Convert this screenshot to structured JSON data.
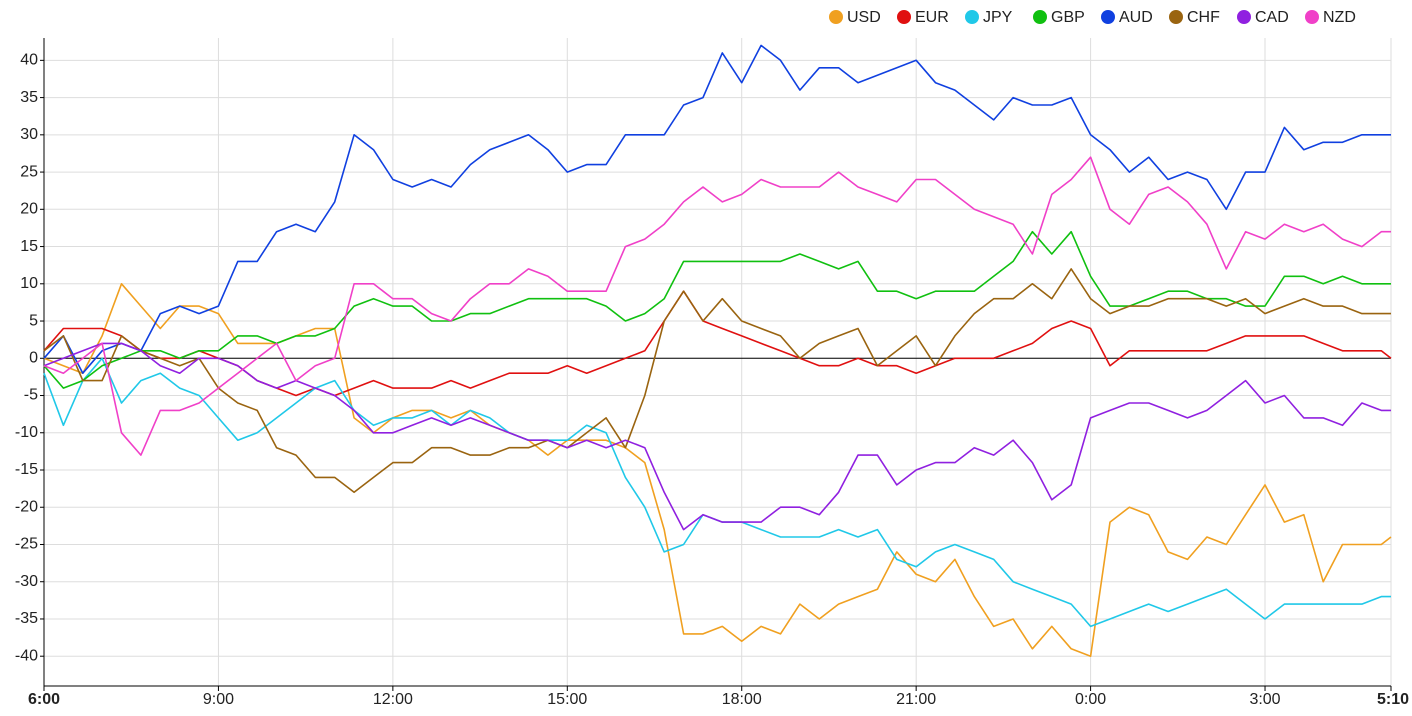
{
  "chart_data": {
    "type": "line",
    "x": [
      0,
      20,
      40,
      60,
      80,
      100,
      120,
      140,
      160,
      180,
      200,
      220,
      240,
      260,
      280,
      300,
      320,
      340,
      360,
      380,
      400,
      420,
      440,
      460,
      480,
      500,
      520,
      540,
      560,
      580,
      600,
      620,
      640,
      660,
      680,
      700,
      720,
      740,
      760,
      780,
      800,
      820,
      840,
      860,
      880,
      900,
      920,
      940,
      960,
      980,
      1000,
      1020,
      1040,
      1060,
      1080,
      1100,
      1120,
      1140,
      1160,
      1180,
      1200,
      1220,
      1240,
      1260,
      1280,
      1300,
      1320,
      1340,
      1360,
      1380,
      1390
    ],
    "xlim": [
      0,
      1390
    ],
    "xticks": [
      {
        "value": 0,
        "label": "6:00"
      },
      {
        "value": 180,
        "label": "9:00"
      },
      {
        "value": 360,
        "label": "12:00"
      },
      {
        "value": 540,
        "label": "15:00"
      },
      {
        "value": 720,
        "label": "18:00"
      },
      {
        "value": 900,
        "label": "21:00"
      },
      {
        "value": 1080,
        "label": "0:00"
      },
      {
        "value": 1260,
        "label": "3:00"
      },
      {
        "value": 1390,
        "label": "5:10"
      }
    ],
    "ylim": [
      -44,
      43
    ],
    "yticks": [
      -40,
      -35,
      -30,
      -25,
      -20,
      -15,
      -10,
      -5,
      0,
      5,
      10,
      15,
      20,
      25,
      30,
      35,
      40
    ],
    "grid": true,
    "legend": "top-right",
    "series": [
      {
        "name": "USD",
        "color": "#f0a020",
        "values": [
          0,
          -1,
          -2,
          3,
          10,
          7,
          4,
          7,
          7,
          6,
          2,
          2,
          2,
          3,
          4,
          4,
          -8,
          -10,
          -8,
          -7,
          -7,
          -8,
          -7,
          -9,
          -10,
          -11,
          -13,
          -11,
          -11,
          -11,
          -12,
          -14,
          -23,
          -37,
          -37,
          -36,
          -38,
          -36,
          -37,
          -33,
          -35,
          -33,
          -32,
          -31,
          -26,
          -29,
          -30,
          -27,
          -32,
          -36,
          -35,
          -39,
          -36,
          -39,
          -40,
          -22,
          -20,
          -21,
          -26,
          -27,
          -24,
          -25,
          -21,
          -17,
          -22,
          -21,
          -30,
          -25,
          -25,
          -25,
          -24
        ]
      },
      {
        "name": "EUR",
        "color": "#e01010",
        "values": [
          1,
          4,
          4,
          4,
          3,
          1,
          0,
          0,
          1,
          0,
          -1,
          -3,
          -4,
          -5,
          -4,
          -5,
          -4,
          -3,
          -4,
          -4,
          -4,
          -3,
          -4,
          -3,
          -2,
          -2,
          -2,
          -1,
          -2,
          -1,
          0,
          1,
          5,
          9,
          5,
          4,
          3,
          2,
          1,
          0,
          -1,
          -1,
          0,
          -1,
          -1,
          -2,
          -1,
          0,
          0,
          0,
          1,
          2,
          4,
          5,
          4,
          -1,
          1,
          1,
          1,
          1,
          1,
          2,
          3,
          3,
          3,
          3,
          2,
          1,
          1,
          1,
          0
        ]
      },
      {
        "name": "JPY",
        "color": "#20c8e8",
        "values": [
          -2,
          -9,
          -3,
          0,
          -6,
          -3,
          -2,
          -4,
          -5,
          -8,
          -11,
          -10,
          -8,
          -6,
          -4,
          -3,
          -7,
          -9,
          -8,
          -8,
          -7,
          -9,
          -7,
          -8,
          -10,
          -11,
          -11,
          -11,
          -9,
          -10,
          -16,
          -20,
          -26,
          -25,
          -21,
          -22,
          -22,
          -23,
          -24,
          -24,
          -24,
          -23,
          -24,
          -23,
          -27,
          -28,
          -26,
          -25,
          -26,
          -27,
          -30,
          -31,
          -32,
          -33,
          -36,
          -35,
          -34,
          -33,
          -34,
          -33,
          -32,
          -31,
          -33,
          -35,
          -33,
          -33,
          -33,
          -33,
          -33,
          -32,
          -32
        ]
      },
      {
        "name": "GBP",
        "color": "#10c010",
        "values": [
          -1,
          -4,
          -3,
          -1,
          0,
          1,
          1,
          0,
          1,
          1,
          3,
          3,
          2,
          3,
          3,
          4,
          7,
          8,
          7,
          7,
          5,
          5,
          6,
          6,
          7,
          8,
          8,
          8,
          8,
          7,
          5,
          6,
          8,
          13,
          13,
          13,
          13,
          13,
          13,
          14,
          13,
          12,
          13,
          9,
          9,
          8,
          9,
          9,
          9,
          11,
          13,
          17,
          14,
          17,
          11,
          7,
          7,
          8,
          9,
          9,
          8,
          8,
          7,
          7,
          11,
          11,
          10,
          11,
          10,
          10,
          10
        ]
      },
      {
        "name": "AUD",
        "color": "#1040e0",
        "values": [
          0,
          3,
          -2,
          1,
          2,
          1,
          6,
          7,
          6,
          7,
          13,
          13,
          17,
          18,
          17,
          21,
          30,
          28,
          24,
          23,
          24,
          23,
          26,
          28,
          29,
          30,
          28,
          25,
          26,
          26,
          30,
          30,
          30,
          34,
          35,
          41,
          37,
          42,
          40,
          36,
          39,
          39,
          37,
          38,
          39,
          40,
          37,
          36,
          34,
          32,
          35,
          34,
          34,
          35,
          30,
          28,
          25,
          27,
          24,
          25,
          24,
          20,
          25,
          25,
          31,
          28,
          29,
          29,
          30,
          30,
          30
        ]
      },
      {
        "name": "CHF",
        "color": "#9a6410",
        "values": [
          1,
          3,
          -3,
          -3,
          3,
          1,
          0,
          -1,
          0,
          -4,
          -6,
          -7,
          -12,
          -13,
          -16,
          -16,
          -18,
          -16,
          -14,
          -14,
          -12,
          -12,
          -13,
          -13,
          -12,
          -12,
          -11,
          -12,
          -10,
          -8,
          -12,
          -5,
          5,
          9,
          5,
          8,
          5,
          4,
          3,
          0,
          2,
          3,
          4,
          -1,
          1,
          3,
          -1,
          3,
          6,
          8,
          8,
          10,
          8,
          12,
          8,
          6,
          7,
          7,
          8,
          8,
          8,
          7,
          8,
          6,
          7,
          8,
          7,
          7,
          6,
          6,
          6
        ]
      },
      {
        "name": "CAD",
        "color": "#9020e0",
        "values": [
          -1,
          0,
          1,
          2,
          2,
          1,
          -1,
          -2,
          0,
          0,
          -1,
          -3,
          -4,
          -3,
          -4,
          -5,
          -7,
          -10,
          -10,
          -9,
          -8,
          -9,
          -8,
          -9,
          -10,
          -11,
          -11,
          -12,
          -11,
          -12,
          -11,
          -12,
          -18,
          -23,
          -21,
          -22,
          -22,
          -22,
          -20,
          -20,
          -21,
          -18,
          -13,
          -13,
          -17,
          -15,
          -14,
          -14,
          -12,
          -13,
          -11,
          -14,
          -19,
          -17,
          -8,
          -7,
          -6,
          -6,
          -7,
          -8,
          -7,
          -5,
          -3,
          -6,
          -5,
          -8,
          -8,
          -9,
          -6,
          -7,
          -7
        ]
      },
      {
        "name": "NZD",
        "color": "#f040c8",
        "values": [
          -1,
          -2,
          0,
          2,
          -10,
          -13,
          -7,
          -7,
          -6,
          -4,
          -2,
          0,
          2,
          -3,
          -1,
          0,
          10,
          10,
          8,
          8,
          6,
          5,
          8,
          10,
          10,
          12,
          11,
          9,
          9,
          9,
          15,
          16,
          18,
          21,
          23,
          21,
          22,
          24,
          23,
          23,
          23,
          25,
          23,
          22,
          21,
          24,
          24,
          22,
          20,
          19,
          18,
          14,
          22,
          24,
          27,
          20,
          18,
          22,
          23,
          21,
          18,
          12,
          17,
          16,
          18,
          17,
          18,
          16,
          15,
          17,
          17
        ]
      }
    ]
  }
}
